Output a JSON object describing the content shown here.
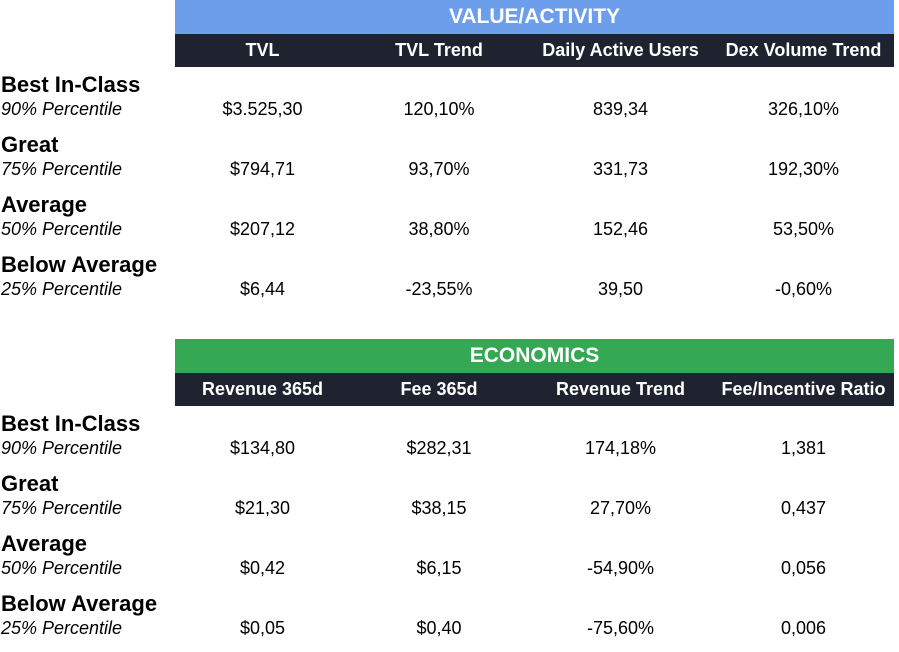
{
  "sections": [
    {
      "title": "VALUE/ACTIVITY",
      "color": "#6d9eeb",
      "columns": [
        "TVL",
        "TVL Trend",
        "Daily Active Users",
        "Dex Volume Trend"
      ],
      "rows": [
        {
          "tier": "Best In-Class",
          "percentile": "90% Percentile",
          "values": [
            "$3.525,30",
            "120,10%",
            "839,34",
            "326,10%"
          ]
        },
        {
          "tier": "Great",
          "percentile": "75% Percentile",
          "values": [
            "$794,71",
            "93,70%",
            "331,73",
            "192,30%"
          ]
        },
        {
          "tier": "Average",
          "percentile": "50% Percentile",
          "values": [
            "$207,12",
            "38,80%",
            "152,46",
            "53,50%"
          ]
        },
        {
          "tier": "Below Average",
          "percentile": "25% Percentile",
          "values": [
            "$6,44",
            "-23,55%",
            "39,50",
            "-0,60%"
          ]
        }
      ]
    },
    {
      "title": "ECONOMICS",
      "color": "#34a853",
      "columns": [
        "Revenue 365d",
        "Fee 365d",
        "Revenue Trend",
        "Fee/Incentive Ratio"
      ],
      "rows": [
        {
          "tier": "Best In-Class",
          "percentile": "90% Percentile",
          "values": [
            "$134,80",
            "$282,31",
            "174,18%",
            "1,381"
          ]
        },
        {
          "tier": "Great",
          "percentile": "75% Percentile",
          "values": [
            "$21,30",
            "$38,15",
            "27,70%",
            "0,437"
          ]
        },
        {
          "tier": "Average",
          "percentile": "50% Percentile",
          "values": [
            "$0,42",
            "$6,15",
            "-54,90%",
            "0,056"
          ]
        },
        {
          "tier": "Below Average",
          "percentile": "25% Percentile",
          "values": [
            "$0,05",
            "$0,40",
            "-75,60%",
            "0,006"
          ]
        }
      ]
    }
  ],
  "header_bar_color": "#1f2330"
}
